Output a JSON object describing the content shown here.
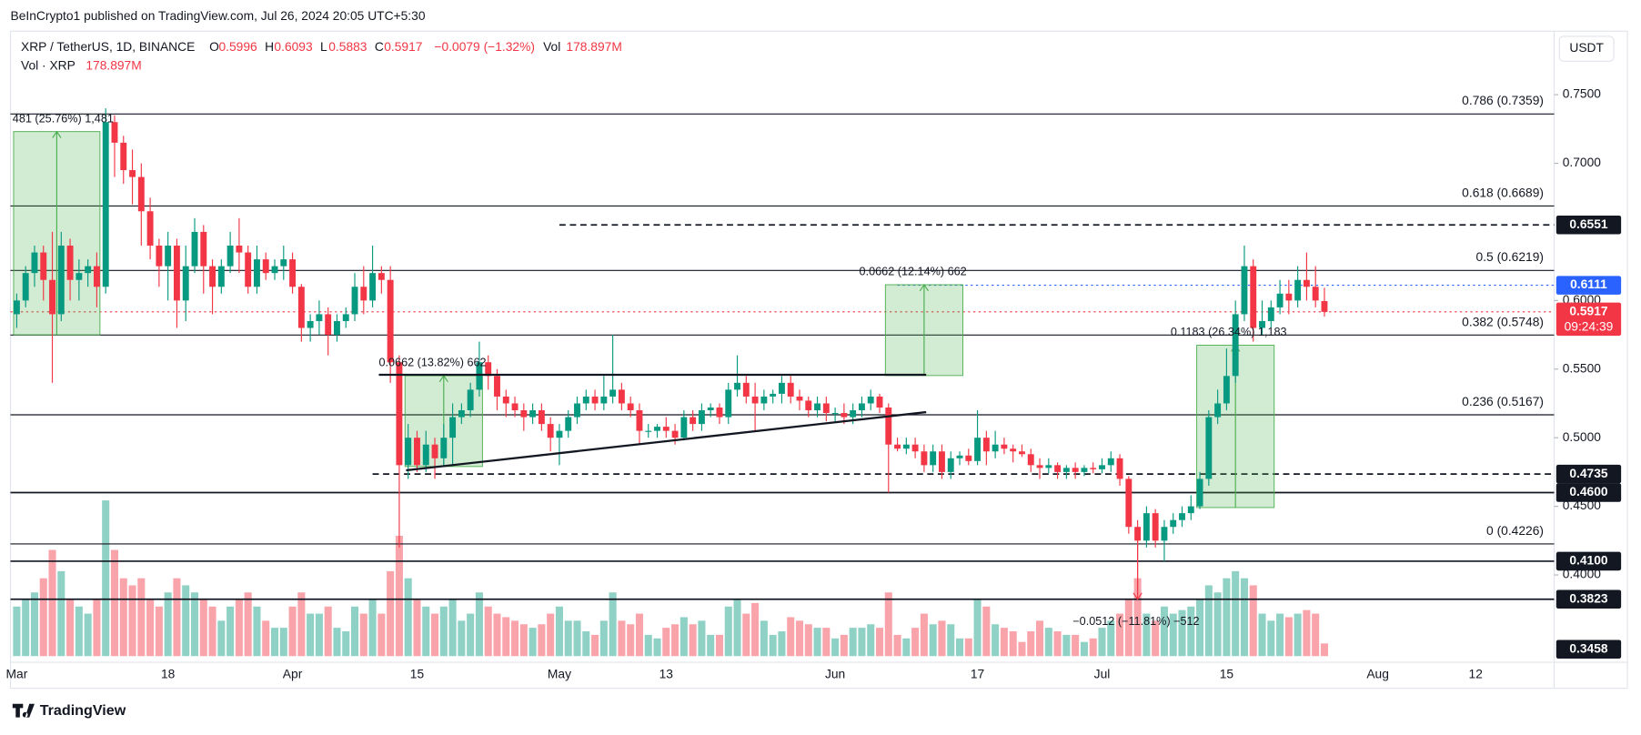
{
  "header": "BeInCrypto1 published on TradingView.com, Jul 26, 2024 20:05 UTC+5:30",
  "brand": "TradingView",
  "currency_button": "USDT",
  "chart_data": {
    "type": "candlestick",
    "legend": {
      "symbol": "XRP / TetherUS, 1D, BINANCE",
      "o": "O",
      "h": "H",
      "l": "L",
      "c": "C",
      "change": "−0.0079 (−1.32%)",
      "vol": "Vol",
      "vol_title": "Vol · XRP",
      "vol_value_label": "178.897M"
    },
    "up_color": "#089981",
    "down_color": "#f23645",
    "ylim": [
      0.3363,
      0.7963
    ],
    "yticks": [
      {
        "value": 0.75,
        "label": "0.7500"
      },
      {
        "value": 0.7,
        "label": "0.7000"
      },
      {
        "value": 0.6,
        "label": "0.6000"
      },
      {
        "value": 0.55,
        "label": "0.5500"
      },
      {
        "value": 0.5,
        "label": "0.5000"
      },
      {
        "value": 0.45,
        "label": "0.4500"
      },
      {
        "value": 0.4,
        "label": "0.4000"
      }
    ],
    "xticks": [
      {
        "value": "Mar 1",
        "label": "Mar"
      },
      {
        "value": "Mar 18",
        "label": "18"
      },
      {
        "value": "Apr 1",
        "label": "Apr"
      },
      {
        "value": "Apr 15",
        "label": "15"
      },
      {
        "value": "May 1",
        "label": "May"
      },
      {
        "value": "May 13",
        "label": "13"
      },
      {
        "value": "Jun 1",
        "label": "Jun"
      },
      {
        "value": "Jun 17",
        "label": "17"
      },
      {
        "value": "Jul 1",
        "label": "Jul"
      },
      {
        "value": "Jul 15",
        "label": "15"
      },
      {
        "value": "Aug 1",
        "label": "Aug"
      },
      {
        "value": "Aug 12",
        "label": "12"
      }
    ],
    "fib_levels": [
      {
        "value": 0.7359,
        "label": "0.786 (0.7359)"
      },
      {
        "value": 0.6689,
        "label": "0.618 (0.6689)"
      },
      {
        "value": 0.6219,
        "label": "0.5 (0.6219)"
      },
      {
        "value": 0.5748,
        "label": "0.382 (0.5748)"
      },
      {
        "value": 0.5167,
        "label": "0.236 (0.5167)"
      },
      {
        "value": 0.4226,
        "label": "0 (0.4226)"
      }
    ],
    "levels": [
      {
        "value": 0.6551,
        "label": "0.6551",
        "style": "dashed",
        "color": "#131722",
        "from": "May 1"
      },
      {
        "value": 0.6111,
        "label": "0.6111",
        "style": "dotted",
        "color": "#2962ff",
        "from": "Jun 8"
      },
      {
        "value": 0.5917,
        "label": "0.5917",
        "style": "dotted",
        "color": "#f23645",
        "countdown": "09:24:39"
      },
      {
        "value": 0.4735,
        "label": "0.4735",
        "style": "dashed",
        "color": "#131722",
        "from": "Apr 10"
      },
      {
        "value": 0.46,
        "label": "0.4600",
        "style": "solid",
        "color": "#131722"
      },
      {
        "value": 0.41,
        "label": "0.4100",
        "style": "solid",
        "color": "#131722"
      },
      {
        "value": 0.3823,
        "label": "0.3823",
        "style": "solid",
        "color": "#131722"
      },
      {
        "value": 0.3458,
        "label": "0.3458",
        "style": "none",
        "color": "#131722"
      }
    ],
    "measures": [
      {
        "label": "481 (25.76%) 1,481",
        "x0": "Mar 1",
        "x1": "Mar 10",
        "p0": 0.575,
        "p1": 0.7231
      },
      {
        "label": "0.0662 (13.82%) 662",
        "x0": "Apr 14",
        "x1": "Apr 22",
        "p0": 0.479,
        "p1": 0.5452
      },
      {
        "label": "0.0662 (12.14%) 662",
        "x0": "Jun 7",
        "x1": "Jun 15",
        "p0": 0.5453,
        "p1": 0.6115
      },
      {
        "label": "0.1183 (26.34%) 1,183",
        "x0": "Jul 12",
        "x1": "Jul 20",
        "p0": 0.4491,
        "p1": 0.5674
      },
      {
        "label": "−0.0512 (−11.81%) −512",
        "x0": "Jul 5",
        "x1": "Jul 5",
        "p0": 0.4335,
        "p1": 0.3823
      }
    ],
    "candles": [
      [
        "Mar 1",
        0.59,
        0.605,
        0.58,
        0.6,
        700
      ],
      [
        "Mar 2",
        0.6,
        0.625,
        0.595,
        0.62,
        800
      ],
      [
        "Mar 3",
        0.62,
        0.64,
        0.61,
        0.635,
        900
      ],
      [
        "Mar 4",
        0.635,
        0.64,
        0.6,
        0.615,
        1100
      ],
      [
        "Mar 5",
        0.615,
        0.65,
        0.54,
        0.59,
        1500
      ],
      [
        "Mar 6",
        0.59,
        0.65,
        0.585,
        0.64,
        1200
      ],
      [
        "Mar 7",
        0.64,
        0.645,
        0.6,
        0.615,
        800
      ],
      [
        "Mar 8",
        0.615,
        0.63,
        0.6,
        0.62,
        700
      ],
      [
        "Mar 9",
        0.62,
        0.63,
        0.61,
        0.625,
        600
      ],
      [
        "Mar 10",
        0.625,
        0.635,
        0.595,
        0.61,
        800
      ],
      [
        "Mar 11",
        0.61,
        0.74,
        0.605,
        0.73,
        2200
      ],
      [
        "Mar 12",
        0.73,
        0.735,
        0.69,
        0.715,
        1500
      ],
      [
        "Mar 13",
        0.715,
        0.72,
        0.685,
        0.695,
        1100
      ],
      [
        "Mar 14",
        0.695,
        0.71,
        0.67,
        0.69,
        1000
      ],
      [
        "Mar 15",
        0.69,
        0.7,
        0.64,
        0.665,
        1100
      ],
      [
        "Mar 16",
        0.665,
        0.675,
        0.63,
        0.64,
        800
      ],
      [
        "Mar 17",
        0.64,
        0.645,
        0.61,
        0.625,
        700
      ],
      [
        "Mar 18",
        0.625,
        0.65,
        0.6,
        0.64,
        900
      ],
      [
        "Mar 19",
        0.64,
        0.645,
        0.58,
        0.6,
        1100
      ],
      [
        "Mar 20",
        0.6,
        0.64,
        0.585,
        0.625,
        1000
      ],
      [
        "Mar 21",
        0.625,
        0.66,
        0.62,
        0.65,
        900
      ],
      [
        "Mar 22",
        0.65,
        0.655,
        0.605,
        0.625,
        800
      ],
      [
        "Mar 23",
        0.625,
        0.63,
        0.59,
        0.61,
        700
      ],
      [
        "Mar 24",
        0.61,
        0.63,
        0.605,
        0.625,
        500
      ],
      [
        "Mar 25",
        0.625,
        0.65,
        0.62,
        0.64,
        700
      ],
      [
        "Mar 26",
        0.64,
        0.66,
        0.62,
        0.635,
        800
      ],
      [
        "Mar 27",
        0.635,
        0.64,
        0.605,
        0.61,
        900
      ],
      [
        "Mar 28",
        0.61,
        0.64,
        0.605,
        0.63,
        700
      ],
      [
        "Mar 29",
        0.63,
        0.635,
        0.615,
        0.62,
        500
      ],
      [
        "Mar 30",
        0.62,
        0.63,
        0.615,
        0.625,
        400
      ],
      [
        "Mar 31",
        0.625,
        0.64,
        0.615,
        0.63,
        400
      ],
      [
        "Apr 1",
        0.63,
        0.635,
        0.605,
        0.61,
        700
      ],
      [
        "Apr 2",
        0.61,
        0.612,
        0.57,
        0.58,
        900
      ],
      [
        "Apr 3",
        0.58,
        0.59,
        0.57,
        0.585,
        600
      ],
      [
        "Apr 4",
        0.585,
        0.6,
        0.575,
        0.59,
        600
      ],
      [
        "Apr 5",
        0.59,
        0.595,
        0.56,
        0.575,
        700
      ],
      [
        "Apr 6",
        0.575,
        0.59,
        0.57,
        0.585,
        400
      ],
      [
        "Apr 7",
        0.585,
        0.595,
        0.58,
        0.59,
        350
      ],
      [
        "Apr 8",
        0.59,
        0.62,
        0.585,
        0.61,
        700
      ],
      [
        "Apr 9",
        0.61,
        0.625,
        0.59,
        0.6,
        600
      ],
      [
        "Apr 10",
        0.6,
        0.64,
        0.595,
        0.62,
        800
      ],
      [
        "Apr 11",
        0.62,
        0.625,
        0.605,
        0.615,
        600
      ],
      [
        "Apr 12",
        0.615,
        0.625,
        0.54,
        0.555,
        1200
      ],
      [
        "Apr 13",
        0.555,
        0.56,
        0.42,
        0.48,
        1700
      ],
      [
        "Apr 14",
        0.48,
        0.51,
        0.47,
        0.5,
        1100
      ],
      [
        "Apr 15",
        0.5,
        0.505,
        0.475,
        0.48,
        800
      ],
      [
        "Apr 16",
        0.48,
        0.505,
        0.475,
        0.495,
        700
      ],
      [
        "Apr 17",
        0.495,
        0.5,
        0.47,
        0.485,
        600
      ],
      [
        "Apr 18",
        0.485,
        0.51,
        0.48,
        0.5,
        700
      ],
      [
        "Apr 19",
        0.5,
        0.525,
        0.48,
        0.515,
        800
      ],
      [
        "Apr 20",
        0.515,
        0.525,
        0.51,
        0.52,
        500
      ],
      [
        "Apr 21",
        0.52,
        0.54,
        0.515,
        0.535,
        600
      ],
      [
        "Apr 22",
        0.535,
        0.57,
        0.53,
        0.555,
        900
      ],
      [
        "Apr 23",
        0.555,
        0.56,
        0.535,
        0.545,
        700
      ],
      [
        "Apr 24",
        0.545,
        0.55,
        0.52,
        0.53,
        600
      ],
      [
        "Apr 25",
        0.53,
        0.535,
        0.515,
        0.525,
        550
      ],
      [
        "Apr 26",
        0.525,
        0.53,
        0.515,
        0.52,
        500
      ],
      [
        "Apr 27",
        0.52,
        0.525,
        0.505,
        0.515,
        450
      ],
      [
        "Apr 28",
        0.515,
        0.525,
        0.51,
        0.52,
        400
      ],
      [
        "Apr 29",
        0.52,
        0.525,
        0.505,
        0.51,
        450
      ],
      [
        "Apr 30",
        0.51,
        0.515,
        0.49,
        0.5,
        600
      ],
      [
        "May 1",
        0.5,
        0.51,
        0.48,
        0.505,
        700
      ],
      [
        "May 2",
        0.505,
        0.52,
        0.5,
        0.515,
        500
      ],
      [
        "May 3",
        0.515,
        0.53,
        0.51,
        0.525,
        500
      ],
      [
        "May 4",
        0.525,
        0.535,
        0.52,
        0.53,
        350
      ],
      [
        "May 5",
        0.53,
        0.535,
        0.52,
        0.525,
        300
      ],
      [
        "May 6",
        0.525,
        0.545,
        0.52,
        0.53,
        500
      ],
      [
        "May 7",
        0.53,
        0.575,
        0.525,
        0.535,
        900
      ],
      [
        "May 8",
        0.535,
        0.54,
        0.52,
        0.525,
        500
      ],
      [
        "May 9",
        0.525,
        0.53,
        0.515,
        0.52,
        450
      ],
      [
        "May 10",
        0.52,
        0.525,
        0.495,
        0.505,
        600
      ],
      [
        "May 11",
        0.505,
        0.51,
        0.5,
        0.505,
        300
      ],
      [
        "May 12",
        0.505,
        0.51,
        0.5,
        0.508,
        250
      ],
      [
        "May 13",
        0.508,
        0.515,
        0.5,
        0.505,
        400
      ],
      [
        "May 14",
        0.505,
        0.51,
        0.495,
        0.5,
        450
      ],
      [
        "May 15",
        0.5,
        0.52,
        0.498,
        0.515,
        550
      ],
      [
        "May 16",
        0.515,
        0.52,
        0.505,
        0.51,
        450
      ],
      [
        "May 17",
        0.51,
        0.525,
        0.505,
        0.52,
        500
      ],
      [
        "May 18",
        0.52,
        0.525,
        0.515,
        0.522,
        300
      ],
      [
        "May 19",
        0.522,
        0.525,
        0.51,
        0.515,
        300
      ],
      [
        "May 20",
        0.515,
        0.54,
        0.51,
        0.535,
        700
      ],
      [
        "May 21",
        0.535,
        0.56,
        0.53,
        0.54,
        800
      ],
      [
        "May 22",
        0.54,
        0.545,
        0.525,
        0.53,
        600
      ],
      [
        "May 23",
        0.53,
        0.54,
        0.505,
        0.525,
        750
      ],
      [
        "May 24",
        0.525,
        0.535,
        0.52,
        0.53,
        500
      ],
      [
        "May 25",
        0.53,
        0.535,
        0.525,
        0.532,
        300
      ],
      [
        "May 26",
        0.532,
        0.545,
        0.525,
        0.54,
        350
      ],
      [
        "May 27",
        0.54,
        0.545,
        0.525,
        0.53,
        550
      ],
      [
        "May 28",
        0.53,
        0.535,
        0.52,
        0.527,
        500
      ],
      [
        "May 29",
        0.527,
        0.53,
        0.515,
        0.52,
        450
      ],
      [
        "May 30",
        0.52,
        0.53,
        0.515,
        0.525,
        400
      ],
      [
        "May 31",
        0.525,
        0.53,
        0.512,
        0.518,
        400
      ],
      [
        "Jun 1",
        0.518,
        0.522,
        0.512,
        0.518,
        250
      ],
      [
        "Jun 2",
        0.518,
        0.525,
        0.51,
        0.515,
        300
      ],
      [
        "Jun 3",
        0.515,
        0.525,
        0.51,
        0.52,
        400
      ],
      [
        "Jun 4",
        0.52,
        0.53,
        0.515,
        0.525,
        400
      ],
      [
        "Jun 5",
        0.525,
        0.535,
        0.52,
        0.53,
        450
      ],
      [
        "Jun 6",
        0.53,
        0.532,
        0.518,
        0.522,
        400
      ],
      [
        "Jun 7",
        0.522,
        0.525,
        0.46,
        0.495,
        900
      ],
      [
        "Jun 8",
        0.495,
        0.5,
        0.49,
        0.492,
        300
      ],
      [
        "Jun 9",
        0.492,
        0.5,
        0.488,
        0.495,
        250
      ],
      [
        "Jun 10",
        0.495,
        0.5,
        0.485,
        0.49,
        400
      ],
      [
        "Jun 11",
        0.49,
        0.495,
        0.475,
        0.48,
        600
      ],
      [
        "Jun 12",
        0.48,
        0.495,
        0.475,
        0.49,
        450
      ],
      [
        "Jun 13",
        0.49,
        0.495,
        0.47,
        0.475,
        500
      ],
      [
        "Jun 14",
        0.475,
        0.49,
        0.47,
        0.485,
        450
      ],
      [
        "Jun 15",
        0.485,
        0.49,
        0.48,
        0.487,
        250
      ],
      [
        "Jun 16",
        0.487,
        0.492,
        0.48,
        0.483,
        250
      ],
      [
        "Jun 17",
        0.483,
        0.52,
        0.48,
        0.5,
        800
      ],
      [
        "Jun 18",
        0.5,
        0.505,
        0.48,
        0.49,
        700
      ],
      [
        "Jun 19",
        0.49,
        0.505,
        0.485,
        0.495,
        450
      ],
      [
        "Jun 20",
        0.495,
        0.5,
        0.488,
        0.492,
        400
      ],
      [
        "Jun 21",
        0.492,
        0.495,
        0.482,
        0.49,
        350
      ],
      [
        "Jun 22",
        0.49,
        0.495,
        0.486,
        0.488,
        200
      ],
      [
        "Jun 23",
        0.488,
        0.492,
        0.475,
        0.48,
        350
      ],
      [
        "Jun 24",
        0.48,
        0.485,
        0.47,
        0.478,
        500
      ],
      [
        "Jun 25",
        0.478,
        0.485,
        0.474,
        0.48,
        400
      ],
      [
        "Jun 26",
        0.48,
        0.482,
        0.47,
        0.475,
        350
      ],
      [
        "Jun 27",
        0.475,
        0.48,
        0.47,
        0.478,
        300
      ],
      [
        "Jun 28",
        0.478,
        0.482,
        0.47,
        0.475,
        300
      ],
      [
        "Jun 29",
        0.475,
        0.48,
        0.472,
        0.478,
        200
      ],
      [
        "Jun 30",
        0.478,
        0.482,
        0.474,
        0.477,
        250
      ],
      [
        "Jul 1",
        0.477,
        0.485,
        0.474,
        0.48,
        400
      ],
      [
        "Jul 2",
        0.48,
        0.49,
        0.475,
        0.485,
        500
      ],
      [
        "Jul 3",
        0.485,
        0.488,
        0.465,
        0.47,
        600
      ],
      [
        "Jul 4",
        0.47,
        0.472,
        0.43,
        0.435,
        800
      ],
      [
        "Jul 5",
        0.435,
        0.44,
        0.385,
        0.425,
        1100
      ],
      [
        "Jul 6",
        0.425,
        0.45,
        0.42,
        0.445,
        600
      ],
      [
        "Jul 7",
        0.445,
        0.448,
        0.42,
        0.425,
        500
      ],
      [
        "Jul 8",
        0.425,
        0.44,
        0.41,
        0.435,
        700
      ],
      [
        "Jul 9",
        0.435,
        0.445,
        0.43,
        0.44,
        600
      ],
      [
        "Jul 10",
        0.44,
        0.45,
        0.435,
        0.445,
        650
      ],
      [
        "Jul 11",
        0.445,
        0.458,
        0.44,
        0.45,
        700
      ],
      [
        "Jul 12",
        0.45,
        0.475,
        0.448,
        0.47,
        800
      ],
      [
        "Jul 13",
        0.47,
        0.52,
        0.465,
        0.515,
        1000
      ],
      [
        "Jul 14",
        0.515,
        0.535,
        0.51,
        0.525,
        900
      ],
      [
        "Jul 15",
        0.525,
        0.565,
        0.52,
        0.545,
        1100
      ],
      [
        "Jul 16",
        0.545,
        0.6,
        0.54,
        0.59,
        1200
      ],
      [
        "Jul 17",
        0.59,
        0.64,
        0.585,
        0.625,
        1100
      ],
      [
        "Jul 18",
        0.625,
        0.63,
        0.57,
        0.58,
        1000
      ],
      [
        "Jul 19",
        0.58,
        0.6,
        0.575,
        0.585,
        600
      ],
      [
        "Jul 20",
        0.585,
        0.6,
        0.58,
        0.595,
        500
      ],
      [
        "Jul 21",
        0.595,
        0.615,
        0.59,
        0.605,
        600
      ],
      [
        "Jul 22",
        0.605,
        0.615,
        0.59,
        0.6,
        550
      ],
      [
        "Jul 23",
        0.6,
        0.625,
        0.595,
        0.615,
        600
      ],
      [
        "Jul 24",
        0.615,
        0.635,
        0.6,
        0.61,
        650
      ],
      [
        "Jul 25",
        0.61,
        0.625,
        0.595,
        0.6,
        600
      ],
      [
        "Jul 26",
        0.5996,
        0.6093,
        0.5883,
        0.5917,
        178.897
      ]
    ]
  }
}
